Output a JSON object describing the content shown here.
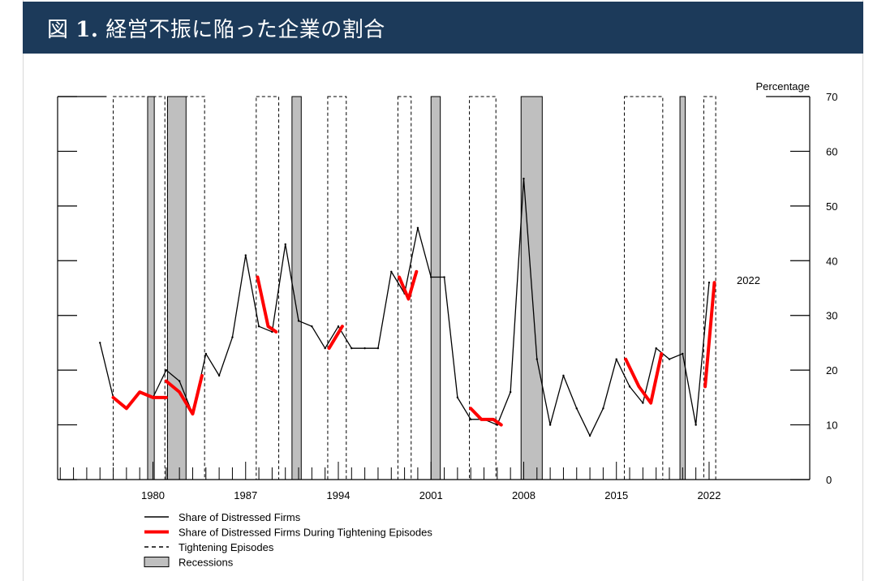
{
  "header": {
    "figure_label": "図",
    "figure_number": "1.",
    "title": "経営不振に陥った企業の割合"
  },
  "colors": {
    "title_bar": "#1c3a5a",
    "distressed_line": "#000000",
    "tightening_highlight": "#ff0000",
    "recession_fill": "#bfbfbf"
  },
  "chart_data": {
    "type": "line",
    "ylabel": "Percentage",
    "ylim": [
      0,
      70
    ],
    "y_ticks": [
      0,
      10,
      20,
      30,
      40,
      50,
      60,
      70
    ],
    "x_tick_labels": [
      "1980",
      "1987",
      "1994",
      "2001",
      "2008",
      "2015",
      "2022"
    ],
    "xlim": [
      1972.8,
      2029.6
    ],
    "y_axis_position": "right",
    "grid": false,
    "end_label": "2022",
    "series": [
      {
        "name": "Share of Distressed Firms",
        "x": [
          1976,
          1977,
          1978,
          1979,
          1980,
          1981,
          1982,
          1983,
          1984,
          1985,
          1986,
          1987,
          1988,
          1989,
          1990,
          1991,
          1992,
          1993,
          1994,
          1995,
          1996,
          1997,
          1998,
          1999,
          2000,
          2001,
          2002,
          2003,
          2004,
          2005,
          2006,
          2007,
          2008,
          2009,
          2010,
          2011,
          2012,
          2013,
          2014,
          2015,
          2016,
          2017,
          2018,
          2019,
          2020,
          2021,
          2022
        ],
        "values": [
          25,
          15,
          13,
          16,
          15,
          20,
          18,
          12,
          23,
          19,
          26,
          41,
          28,
          27,
          43,
          29,
          28,
          24,
          28,
          24,
          24,
          24,
          38,
          34,
          46,
          37,
          37,
          15,
          11,
          11,
          10,
          16,
          55,
          22,
          10,
          19,
          13,
          8,
          13,
          22,
          17,
          14,
          24,
          22,
          23,
          10,
          36
        ]
      },
      {
        "name": "Share of Distressed Firms During Tightening Episodes",
        "segments": [
          {
            "x": [
              1977,
              1978,
              1979,
              1980,
              1981
            ],
            "values": [
              15,
              13,
              16,
              15,
              15
            ]
          },
          {
            "x": [
              1981,
              1982,
              1983,
              1983.7
            ],
            "values": [
              18,
              16,
              12,
              19
            ]
          },
          {
            "x": [
              1987.9,
              1988.7,
              1989.3
            ],
            "values": [
              37,
              28,
              27
            ]
          },
          {
            "x": [
              1993.3,
              1994.3
            ],
            "values": [
              24,
              28
            ]
          },
          {
            "x": [
              1998.6,
              1999.3,
              1999.9
            ],
            "values": [
              37,
              33,
              38
            ]
          },
          {
            "x": [
              2004,
              2004.8,
              2005.7,
              2006.3
            ],
            "values": [
              13,
              11,
              11,
              10
            ]
          },
          {
            "x": [
              2015.7,
              2016.7,
              2017.6,
              2018.4
            ],
            "values": [
              22,
              17,
              14,
              23
            ]
          },
          {
            "x": [
              2021.7,
              2022.4
            ],
            "values": [
              17,
              36
            ]
          }
        ]
      }
    ],
    "tightening_episodes": [
      [
        1977,
        1980.9
      ],
      [
        1981.1,
        1983.9
      ],
      [
        1987.8,
        1989.5
      ],
      [
        1993.2,
        1994.6
      ],
      [
        1998.5,
        1999.5
      ],
      [
        2003.9,
        2005.9
      ],
      [
        2015.6,
        2018.5
      ],
      [
        2021.6,
        2022.5
      ]
    ],
    "recessions": [
      [
        1979.6,
        1980.1
      ],
      [
        1981.1,
        1982.5
      ],
      [
        1990.5,
        1991.2
      ],
      [
        2001.0,
        2001.7
      ],
      [
        2007.8,
        2009.4
      ],
      [
        2019.8,
        2020.2
      ]
    ],
    "legend": [
      {
        "label": "Share of Distressed Firms",
        "style": "solid-black"
      },
      {
        "label": "Share of Distressed Firms During Tightening Episodes",
        "style": "solid-red-thick"
      },
      {
        "label": "Tightening Episodes",
        "style": "dashed-black"
      },
      {
        "label": "Recessions",
        "style": "grey-box"
      }
    ]
  }
}
